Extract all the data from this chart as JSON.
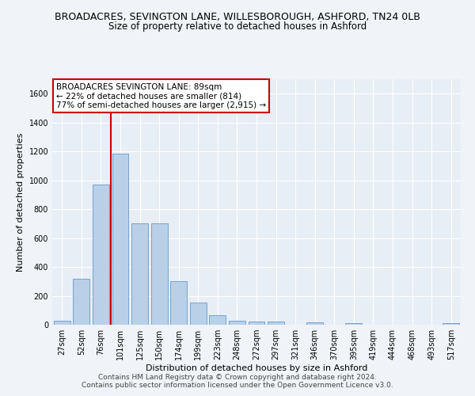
{
  "title": "BROADACRES, SEVINGTON LANE, WILLESBOROUGH, ASHFORD, TN24 0LB",
  "subtitle": "Size of property relative to detached houses in Ashford",
  "xlabel": "Distribution of detached houses by size in Ashford",
  "ylabel": "Number of detached properties",
  "bar_color": "#b8d0e8",
  "bar_edge_color": "#6699cc",
  "background_color": "#e8eef5",
  "grid_color": "#ffffff",
  "categories": [
    "27sqm",
    "52sqm",
    "76sqm",
    "101sqm",
    "125sqm",
    "150sqm",
    "174sqm",
    "199sqm",
    "223sqm",
    "248sqm",
    "272sqm",
    "297sqm",
    "321sqm",
    "346sqm",
    "370sqm",
    "395sqm",
    "419sqm",
    "444sqm",
    "468sqm",
    "493sqm",
    "517sqm"
  ],
  "values": [
    30,
    320,
    970,
    1185,
    700,
    700,
    300,
    155,
    65,
    30,
    20,
    20,
    0,
    15,
    0,
    10,
    0,
    0,
    0,
    0,
    10
  ],
  "ylim": [
    0,
    1700
  ],
  "yticks": [
    0,
    200,
    400,
    600,
    800,
    1000,
    1200,
    1400,
    1600
  ],
  "vline_color": "#cc0000",
  "annotation_text": "BROADACRES SEVINGTON LANE: 89sqm\n← 22% of detached houses are smaller (814)\n77% of semi-detached houses are larger (2,915) →",
  "annotation_box_color": "#ffffff",
  "annotation_box_edge": "#cc0000",
  "footer1": "Contains HM Land Registry data © Crown copyright and database right 2024.",
  "footer2": "Contains public sector information licensed under the Open Government Licence v3.0.",
  "title_fontsize": 9,
  "subtitle_fontsize": 8.5,
  "label_fontsize": 8,
  "tick_fontsize": 7,
  "footer_fontsize": 6.5,
  "annot_fontsize": 7.5
}
